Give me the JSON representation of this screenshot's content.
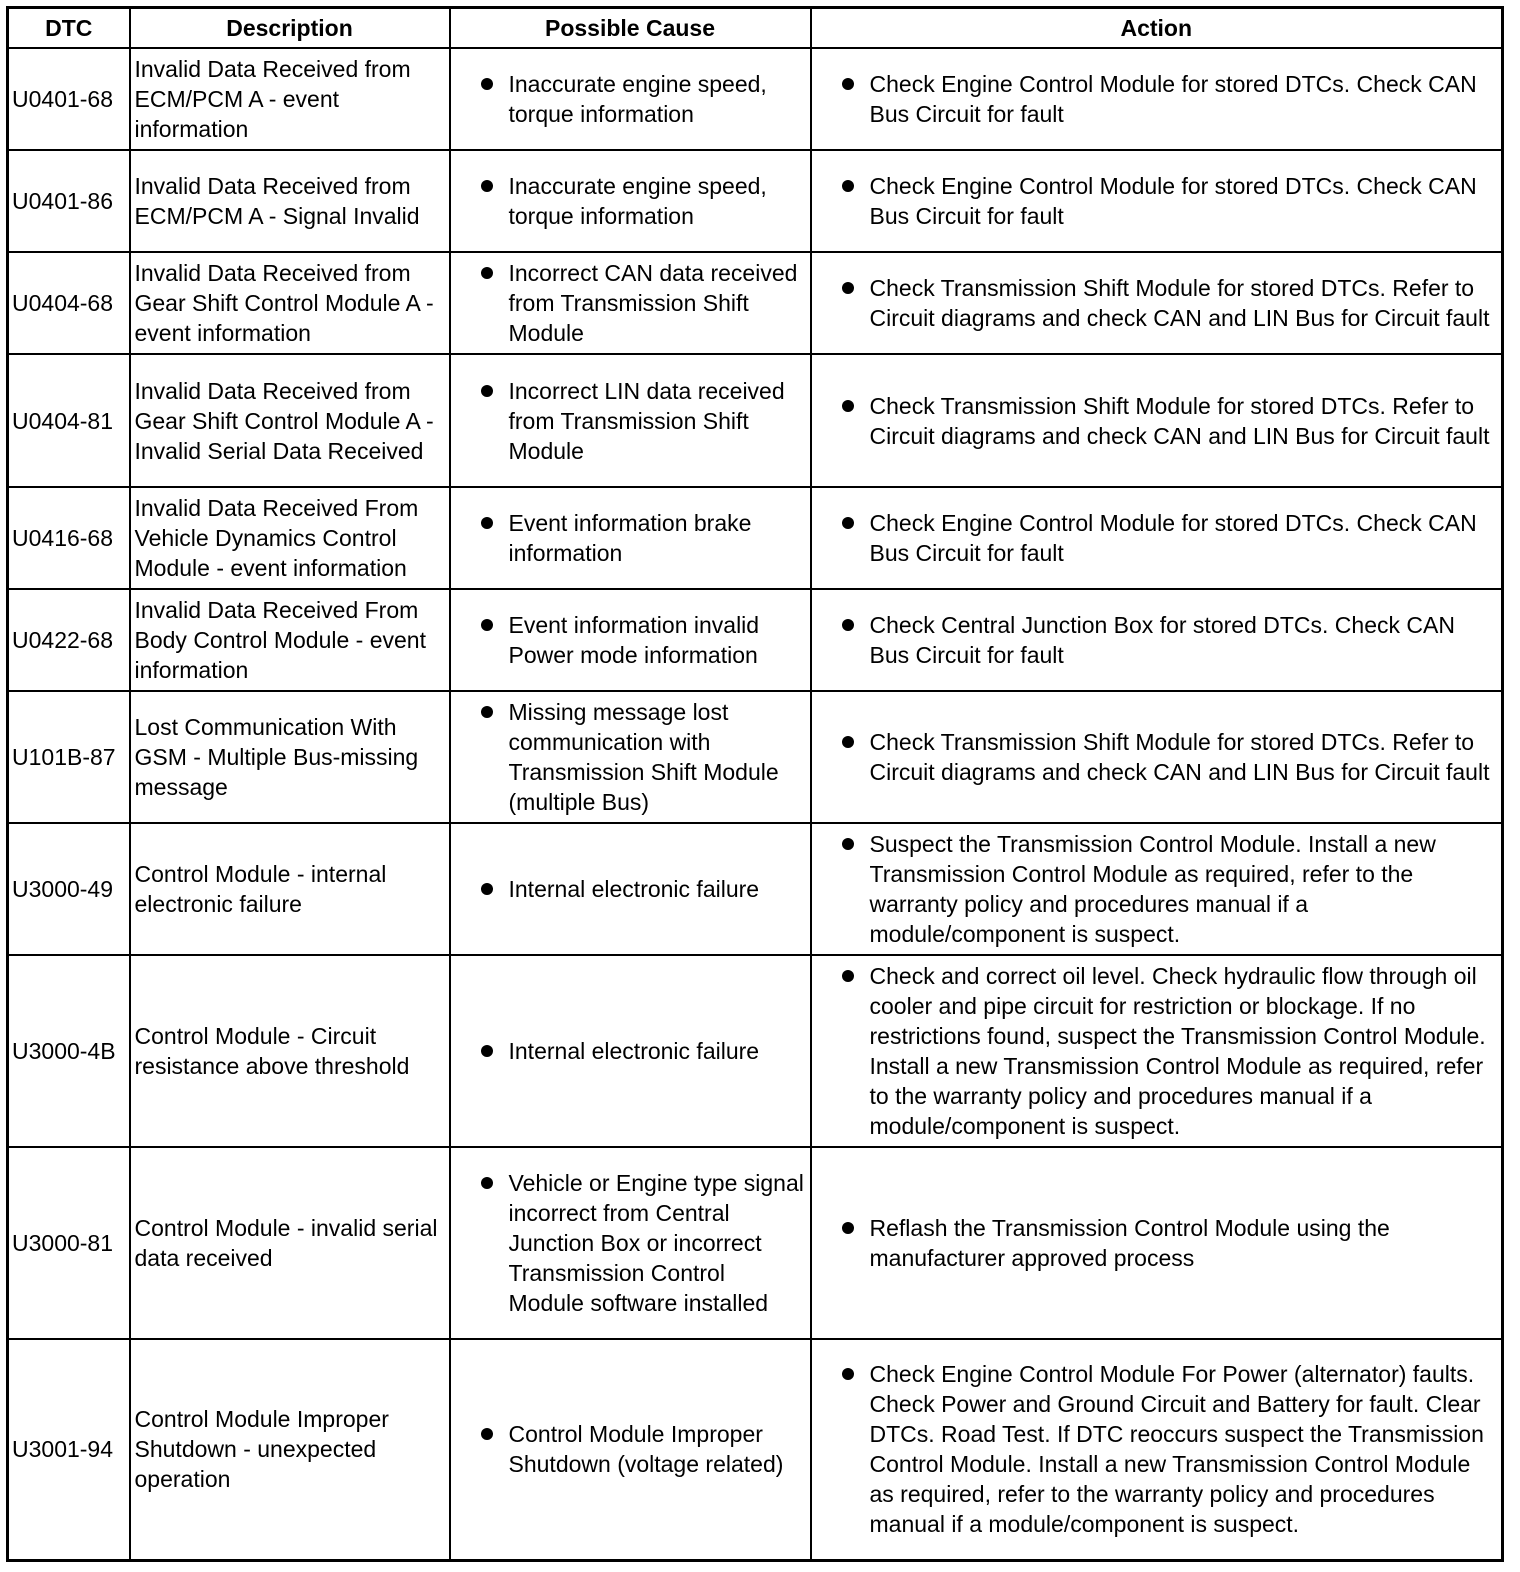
{
  "headers": [
    "DTC",
    "Description",
    "Possible Cause",
    "Action"
  ],
  "rows": [
    {
      "dtc": "U0401-68",
      "description": "Invalid Data Received from ECM/PCM A - event information",
      "cause": "Inaccurate engine speed, torque information",
      "action": "Check Engine Control Module for stored DTCs. Check CAN Bus Circuit for fault"
    },
    {
      "dtc": "U0401-86",
      "description": "Invalid Data Received from ECM/PCM A - Signal Invalid",
      "cause": "Inaccurate engine speed, torque information",
      "action": "Check Engine Control Module for stored DTCs. Check CAN Bus Circuit for fault"
    },
    {
      "dtc": "U0404-68",
      "description": "Invalid Data Received from Gear Shift Control Module A - event information",
      "cause": "Incorrect CAN data received from Transmission Shift Module",
      "action": "Check Transmission Shift Module for stored DTCs. Refer to Circuit diagrams and check CAN and LIN Bus for Circuit fault"
    },
    {
      "dtc": "U0404-81",
      "description": "Invalid Data Received from Gear Shift Control Module A - Invalid Serial Data Received",
      "cause": "Incorrect LIN data received from Transmission Shift Module",
      "action": "Check Transmission Shift Module for stored DTCs. Refer to Circuit diagrams and check CAN and LIN Bus for Circuit fault"
    },
    {
      "dtc": "U0416-68",
      "description": "Invalid Data Received From Vehicle Dynamics Control Module - event information",
      "cause": "Event information brake information",
      "action": "Check Engine Control Module for stored DTCs. Check CAN Bus Circuit for fault"
    },
    {
      "dtc": "U0422-68",
      "description": "Invalid Data Received From Body Control Module - event information",
      "cause": "Event information invalid Power mode information",
      "action": "Check Central Junction Box for stored DTCs. Check CAN Bus Circuit for fault"
    },
    {
      "dtc": "U101B-87",
      "description": "Lost Communication With GSM - Multiple Bus-missing message",
      "cause": "Missing message lost communication with Transmission Shift Module (multiple Bus)",
      "action": "Check Transmission Shift Module for stored DTCs. Refer to Circuit diagrams and check CAN and LIN Bus for Circuit fault"
    },
    {
      "dtc": "U3000-49",
      "description": "Control Module - internal electronic failure",
      "cause": "Internal electronic failure",
      "action": "Suspect the Transmission Control Module. Install a new Transmission Control Module as required, refer to the warranty policy and procedures manual if a module/component is suspect."
    },
    {
      "dtc": "U3000-4B",
      "description": "Control Module - Circuit resistance above threshold",
      "cause": "Internal electronic failure",
      "action": "Check and correct oil level. Check hydraulic flow through oil cooler and pipe circuit for restriction or blockage. If no restrictions found, suspect the Transmission Control Module. Install a new Transmission Control Module as required, refer to the warranty policy and procedures manual if a module/component is suspect."
    },
    {
      "dtc": "U3000-81",
      "description": "Control Module - invalid serial data received",
      "cause": "Vehicle or Engine type signal incorrect from Central Junction Box or incorrect Transmission Control Module software installed",
      "action": "Reflash the Transmission Control Module using the manufacturer approved process"
    },
    {
      "dtc": "U3001-94",
      "description": "Control Module Improper Shutdown - unexpected operation",
      "cause": "Control Module Improper Shutdown (voltage related)",
      "action": "Check Engine Control Module For Power (alternator) faults. Check Power and Ground Circuit and Battery for fault. Clear DTCs. Road Test. If DTC reoccurs suspect the Transmission Control Module. Install a new Transmission Control Module as required, refer to the warranty policy and procedures manual if a module/component is suspect."
    }
  ]
}
